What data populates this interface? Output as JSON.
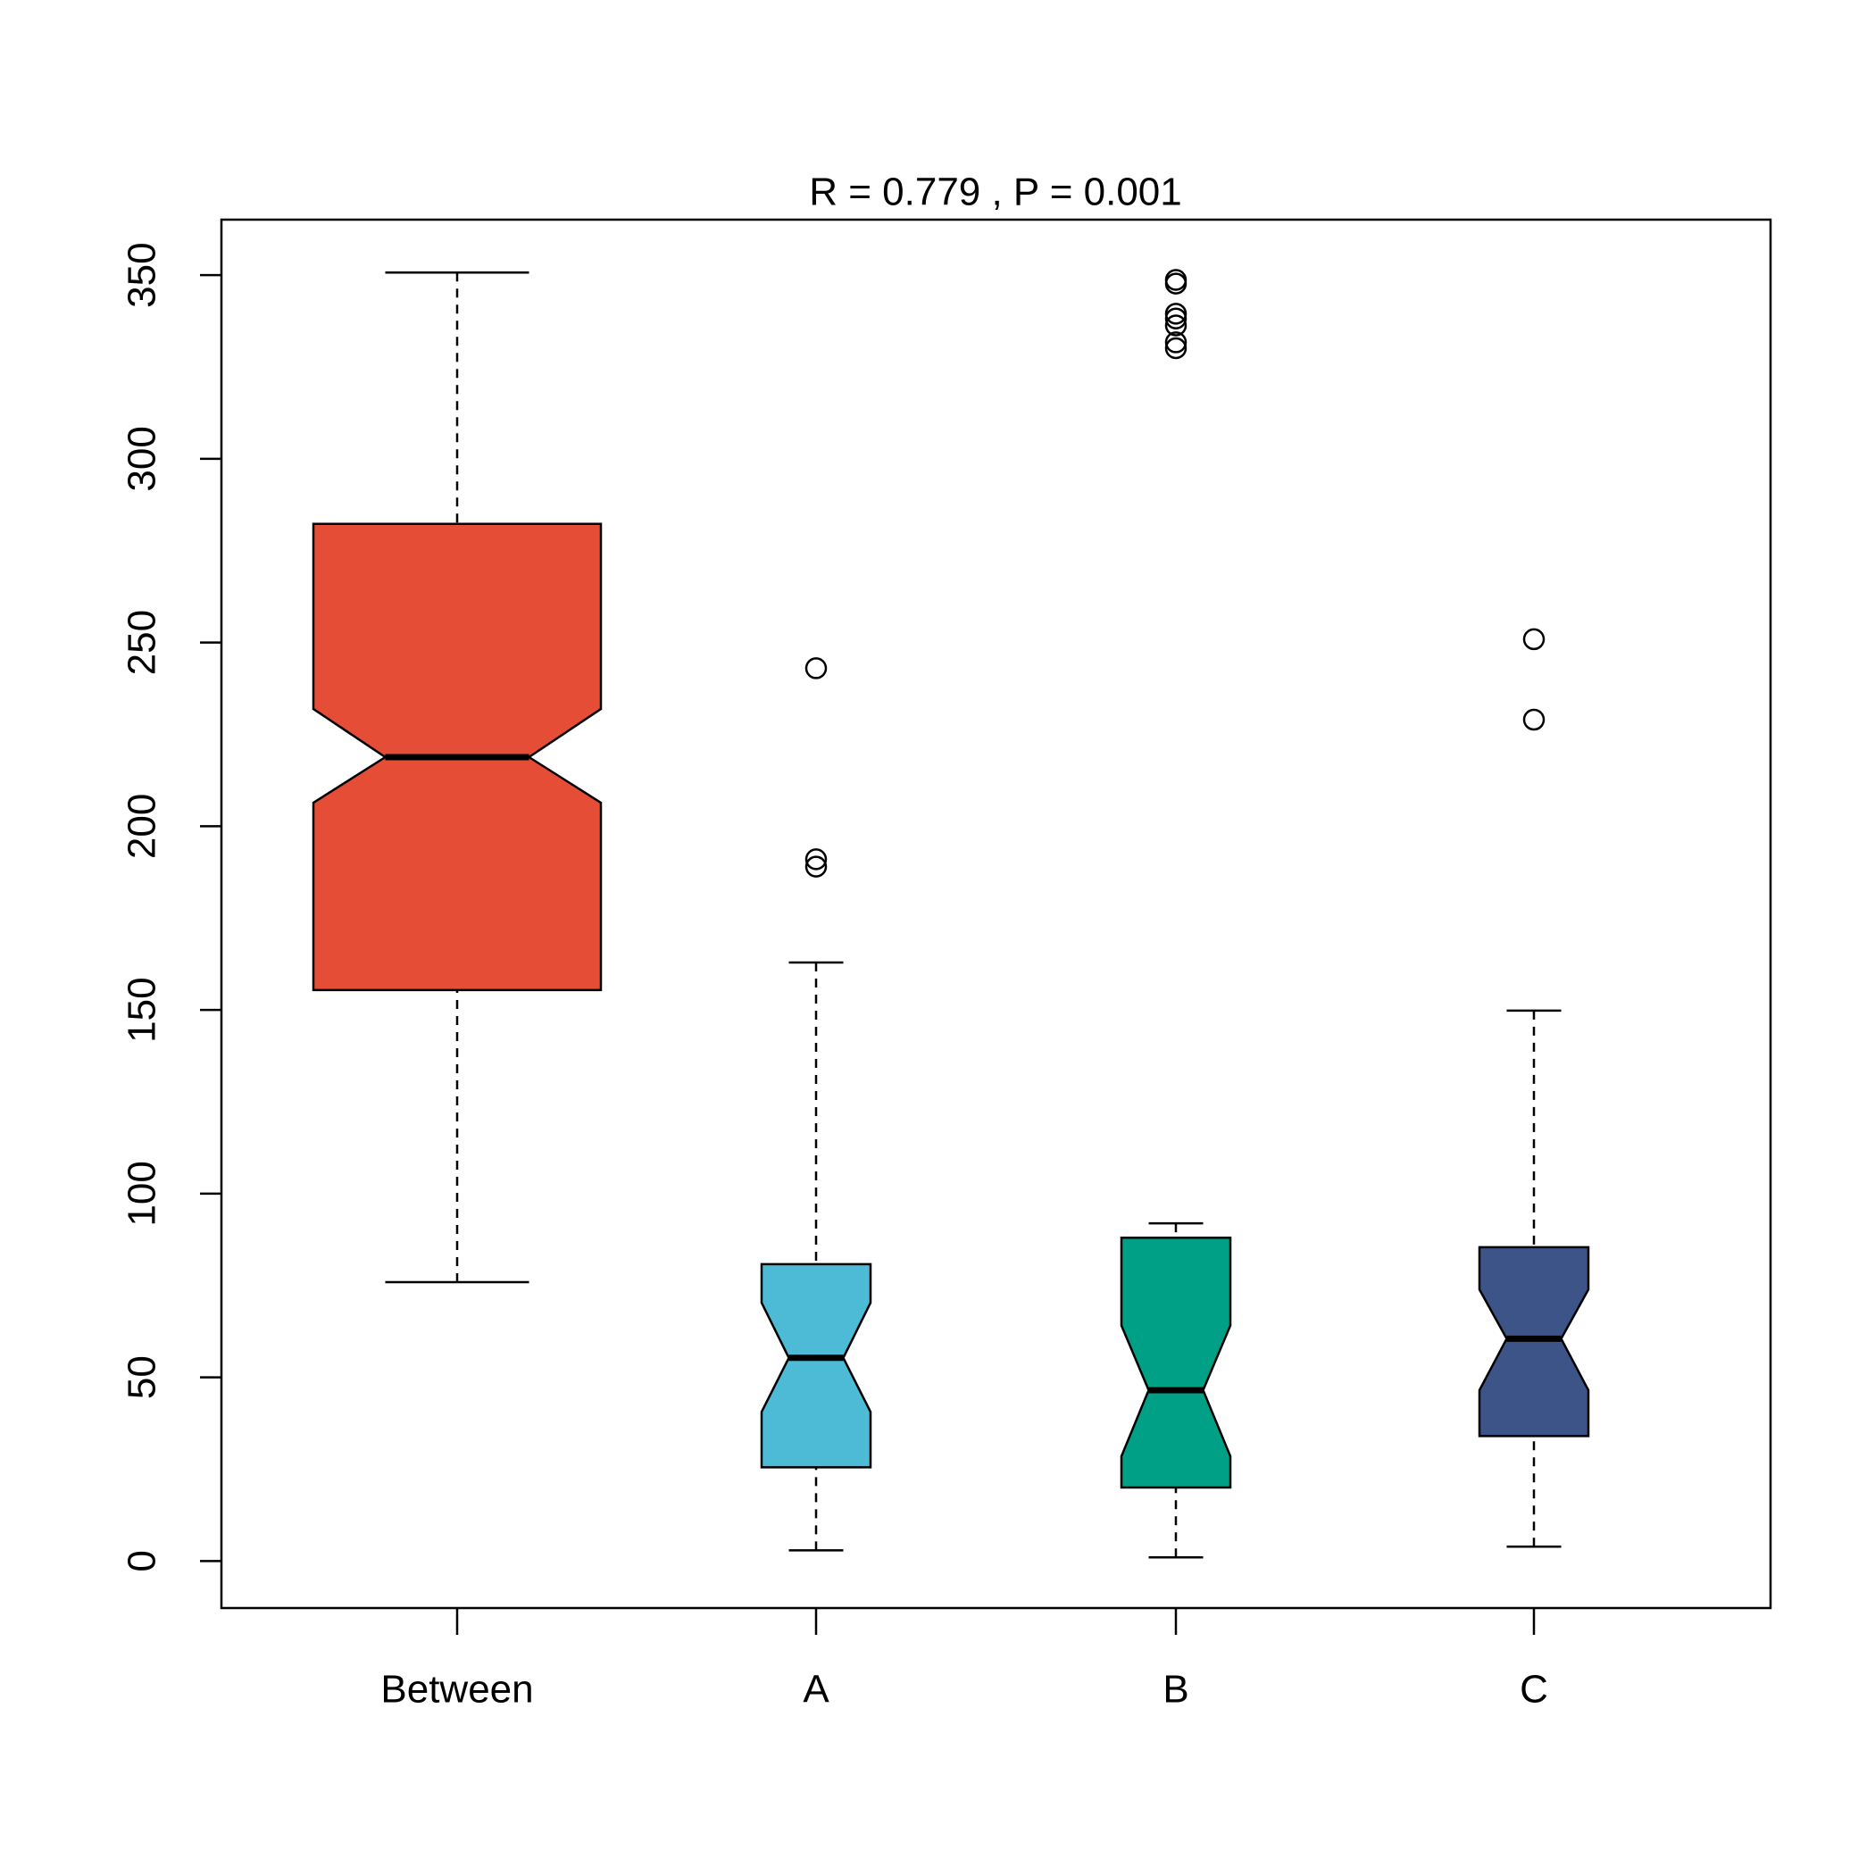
{
  "chart_data": {
    "type": "box",
    "title": "R =  0.779 ,  P =  0.001",
    "categories": [
      "Between",
      "A",
      "B",
      "C"
    ],
    "colors": [
      "#E64D37",
      "#4DBBD5",
      "#00A087",
      "#3C5488"
    ],
    "whisker_low": [
      75.9,
      2.9,
      1,
      3.9
    ],
    "q1": [
      155.4,
      25.5,
      20,
      34
    ],
    "notch_low": [
      206.4,
      40.6,
      28.5,
      46.5
    ],
    "median": [
      218.8,
      55.3,
      46.5,
      60.5
    ],
    "notch_high": [
      231.9,
      70.3,
      64.1,
      73.9
    ],
    "q3": [
      282.3,
      80.8,
      88,
      85.4
    ],
    "whisker_high": [
      350.7,
      162.9,
      91.9,
      149.8
    ],
    "outliers": [
      [],
      [
        243,
        191,
        189
      ],
      [
        348.7,
        347.7,
        339.5,
        338.2,
        336.3,
        331.7,
        330.1
      ],
      [
        250.9,
        229
      ]
    ],
    "ylim": [
      -12.8,
      365.1
    ],
    "yticks": [
      0,
      50,
      100,
      150,
      200,
      250,
      300,
      350
    ]
  }
}
